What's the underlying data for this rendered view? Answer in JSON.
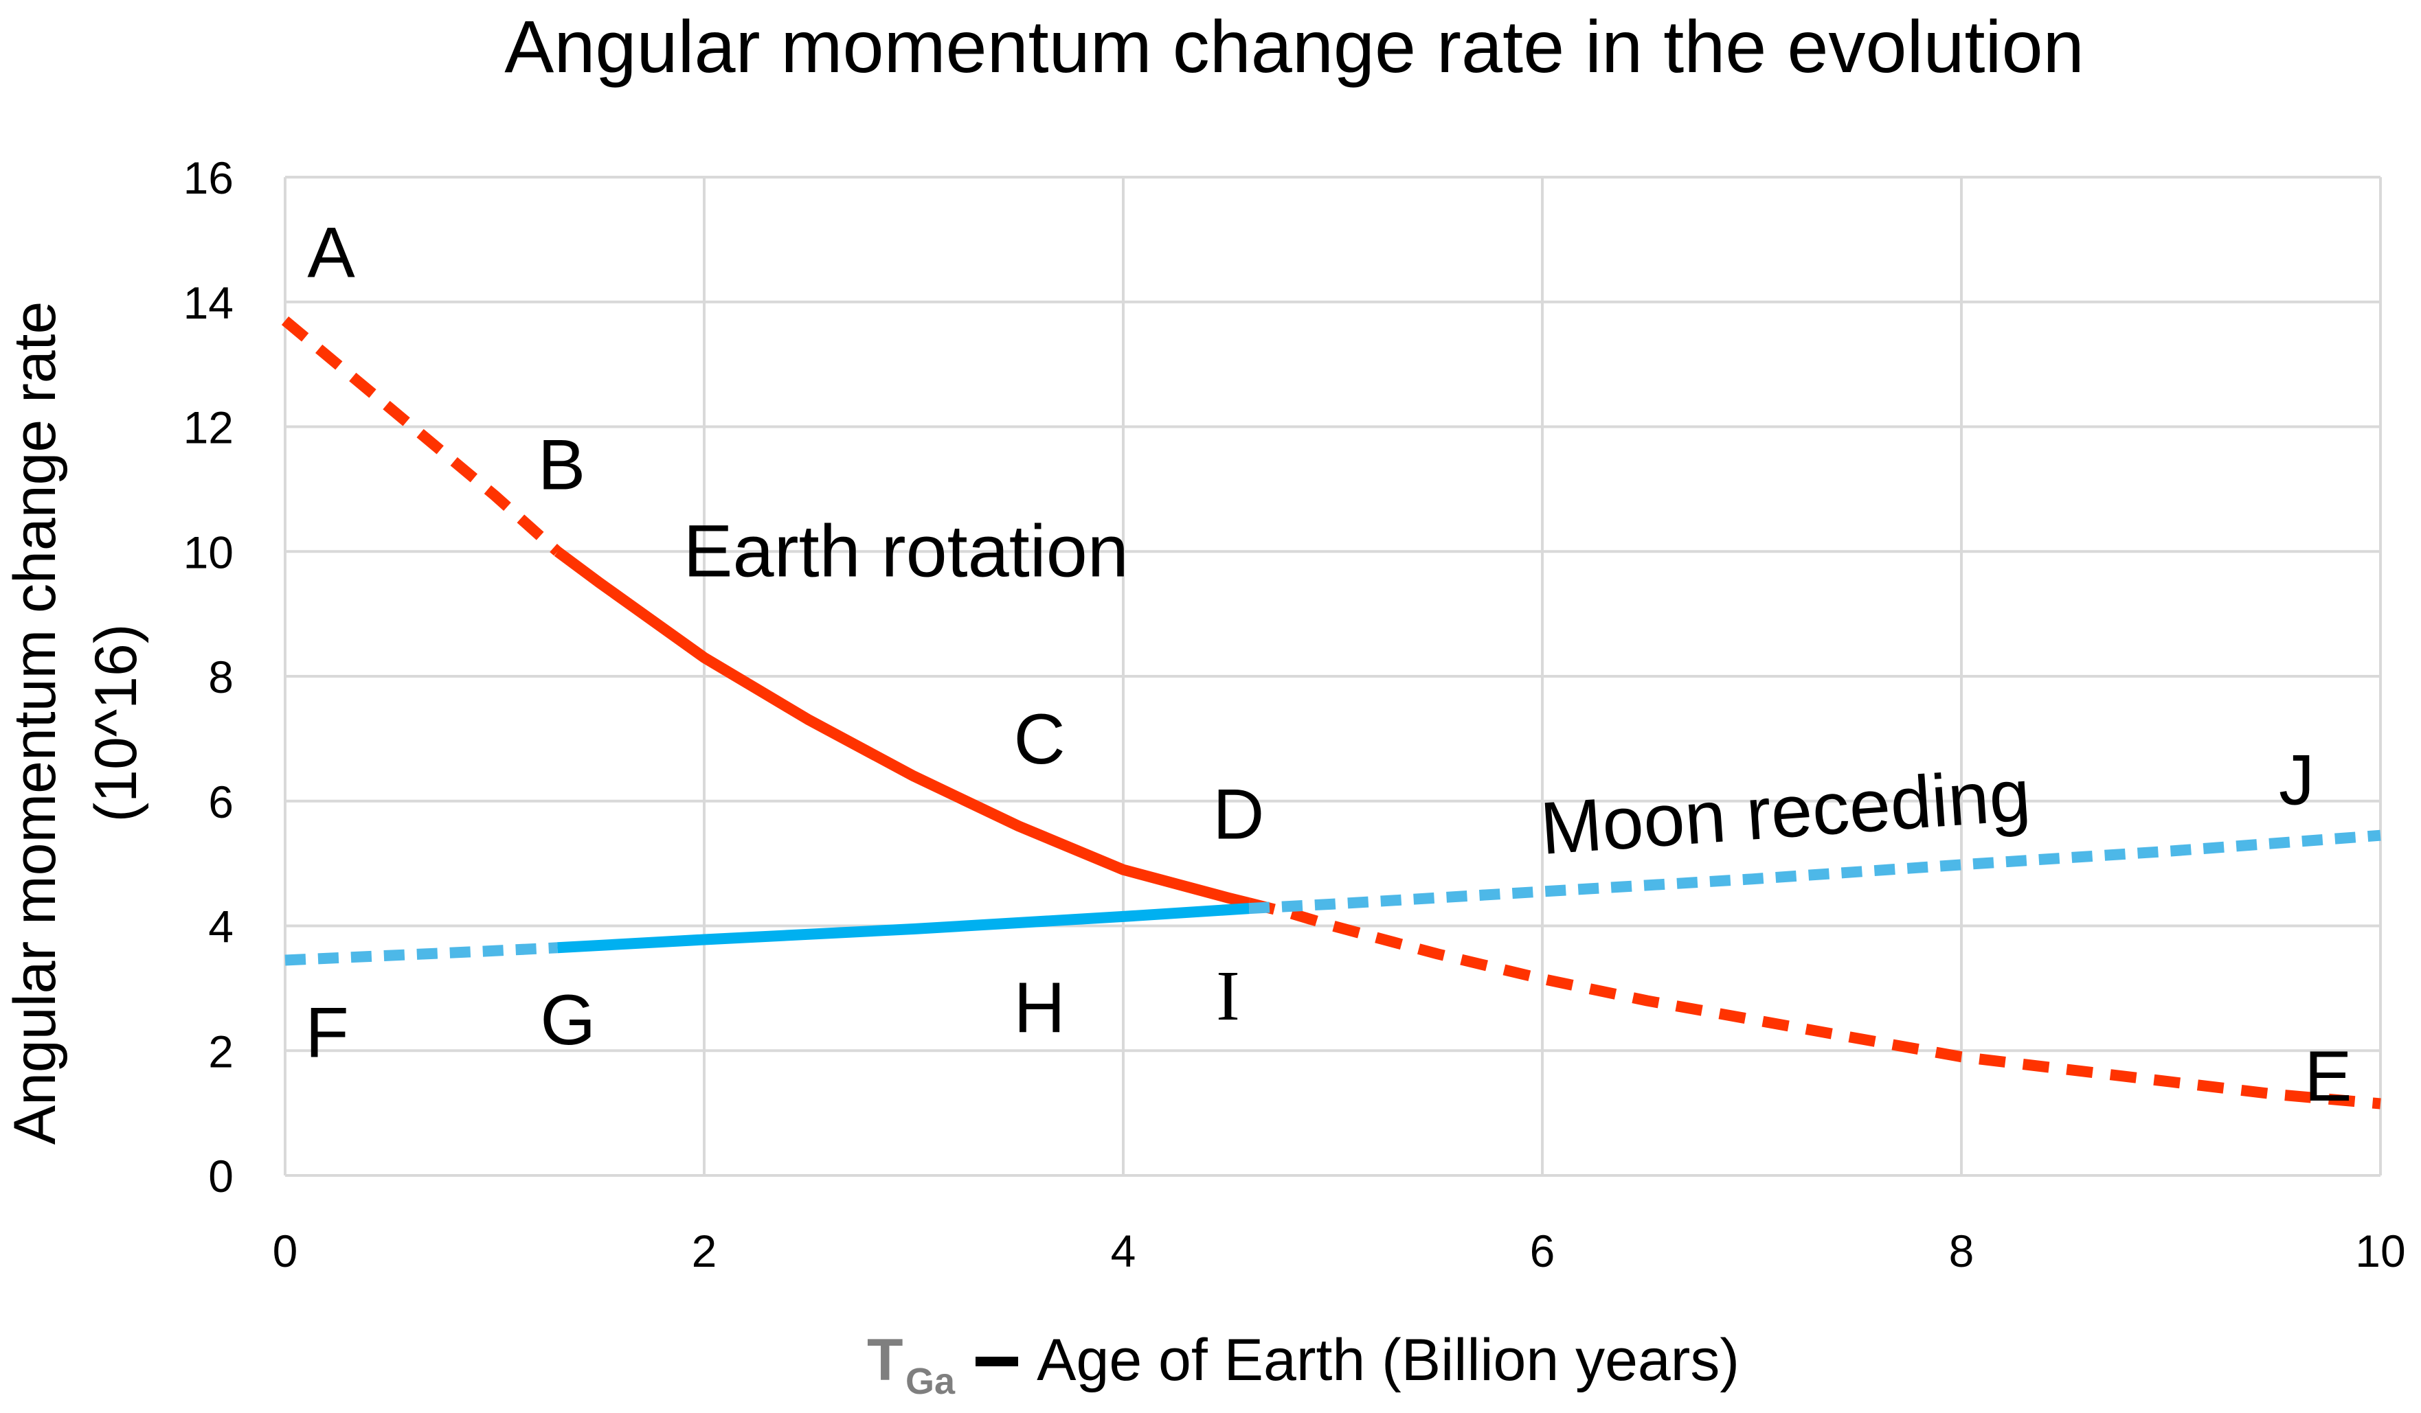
{
  "chart_data": {
    "type": "line",
    "title": "Angular momentum change rate in the evolution",
    "xlabel_main": "T",
    "xlabel_sub": "Ga",
    "xlabel_rest": " Age of Earth (Billion years)",
    "ylabel_line1": "Angular momentum change rate",
    "ylabel_line2": "(10^16)",
    "xlim": [
      0,
      10
    ],
    "ylim": [
      0,
      16
    ],
    "xticks": [
      "0",
      "2",
      "4",
      "6",
      "8",
      "10"
    ],
    "yticks": [
      "0",
      "2",
      "4",
      "6",
      "8",
      "10",
      "12",
      "14",
      "16"
    ],
    "grid": true,
    "colors": {
      "earth": "#ff3300",
      "moon_solid": "#00b0f0",
      "moon_dashed": "#4db8e8",
      "grid": "#d9d9d9"
    },
    "series": [
      {
        "name": "Earth rotation",
        "x": [
          0,
          0.5,
          1.0,
          1.3,
          1.5,
          2.0,
          2.5,
          3.0,
          3.5,
          4.0,
          4.5,
          4.8,
          5.0,
          5.5,
          6.0,
          6.5,
          7.0,
          7.5,
          8.0,
          8.5,
          9.0,
          9.5,
          10.0
        ],
        "values": [
          13.7,
          12.3,
          10.9,
          10.0,
          9.5,
          8.3,
          7.3,
          6.4,
          5.6,
          4.9,
          4.45,
          4.2,
          4.0,
          3.55,
          3.15,
          2.8,
          2.5,
          2.2,
          1.9,
          1.7,
          1.5,
          1.3,
          1.15
        ],
        "solid_range": [
          1.3,
          4.6
        ]
      },
      {
        "name": "Moon receding",
        "x": [
          0,
          1.0,
          1.3,
          2.0,
          3.0,
          4.0,
          4.6,
          5.0,
          6.0,
          7.0,
          8.0,
          9.0,
          10.0
        ],
        "values": [
          3.45,
          3.6,
          3.65,
          3.78,
          3.95,
          4.15,
          4.28,
          4.35,
          4.55,
          4.75,
          4.98,
          5.2,
          5.45
        ],
        "solid_range": [
          1.3,
          4.6
        ]
      }
    ],
    "point_labels": [
      {
        "text": "A",
        "x": 0.22,
        "y": 14.4
      },
      {
        "text": "B",
        "x": 1.32,
        "y": 11.0
      },
      {
        "text": "C",
        "x": 3.6,
        "y": 6.6
      },
      {
        "text": "D",
        "x": 4.55,
        "y": 5.4
      },
      {
        "text": "E",
        "x": 9.75,
        "y": 1.2
      },
      {
        "text": "F",
        "x": 0.2,
        "y": 1.9
      },
      {
        "text": "G",
        "x": 1.35,
        "y": 2.1
      },
      {
        "text": "H",
        "x": 3.6,
        "y": 2.3
      },
      {
        "text": "I",
        "x": 4.5,
        "y": 2.5,
        "serif": true
      },
      {
        "text": "J",
        "x": 9.6,
        "y": 5.95
      }
    ],
    "series_labels": [
      {
        "text": "Earth rotation",
        "x": 1.9,
        "y": 9.6,
        "rotate": 0
      },
      {
        "text": "Moon receding",
        "x": 6.0,
        "y": 5.15,
        "rotate": -4
      }
    ]
  }
}
